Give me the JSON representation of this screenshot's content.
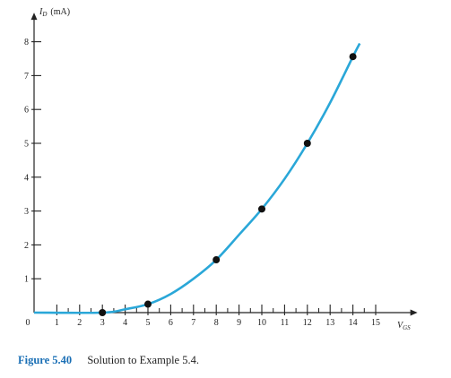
{
  "chart_data": {
    "type": "line",
    "ylabel_symbol": "I",
    "ylabel_sub": "D",
    "ylabel_unit": "(mA)",
    "xlabel_symbol": "V",
    "xlabel_sub": "GS",
    "xlim": [
      0,
      16.6
    ],
    "ylim": [
      0,
      8.7
    ],
    "x_ticks": [
      0,
      1,
      2,
      3,
      4,
      5,
      6,
      7,
      8,
      9,
      10,
      11,
      12,
      13,
      14,
      15
    ],
    "y_ticks": [
      1,
      2,
      3,
      4,
      5,
      6,
      7,
      8
    ],
    "grid": false,
    "curve": {
      "points": [
        [
          0,
          0
        ],
        [
          3,
          0
        ],
        [
          4,
          0.1
        ],
        [
          5,
          0.25
        ],
        [
          6,
          0.55
        ],
        [
          7,
          1.0
        ],
        [
          8,
          1.56
        ],
        [
          9,
          2.3
        ],
        [
          10,
          3.06
        ],
        [
          11,
          3.95
        ],
        [
          12,
          5.0
        ],
        [
          13,
          6.2
        ],
        [
          14,
          7.56
        ],
        [
          14.3,
          7.95
        ]
      ],
      "color": "#2aa7d8"
    },
    "points": {
      "x": [
        3,
        5,
        8,
        10,
        12,
        14
      ],
      "y": [
        0.0,
        0.25,
        1.56,
        3.06,
        5.0,
        7.56
      ],
      "color": "#111111"
    }
  },
  "caption": {
    "figure": "Figure 5.40",
    "text": "Solution to Example 5.4."
  }
}
